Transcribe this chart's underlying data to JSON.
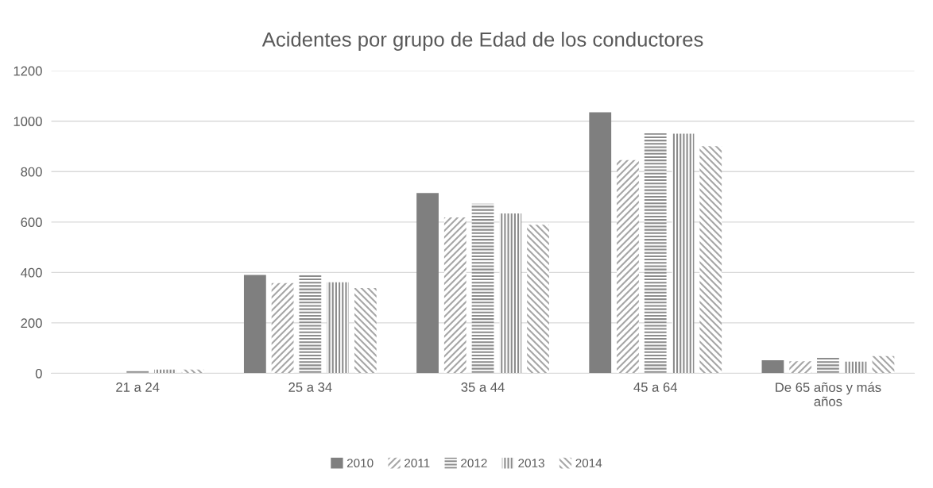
{
  "chart_data": {
    "type": "bar",
    "title": "Acidentes por grupo de Edad de los conductores",
    "categories": [
      "21 a 24",
      "25 a 34",
      "35 a 44",
      "45 a 64",
      "De 65 años y más años"
    ],
    "series": [
      {
        "name": "2010",
        "color": "#7f7f7f",
        "values": [
          0,
          390,
          715,
          1035,
          52
        ]
      },
      {
        "name": "2011",
        "color": "#a6a6a6",
        "values": [
          0,
          358,
          618,
          846,
          48
        ]
      },
      {
        "name": "2012",
        "color": "#8c8c8c",
        "values": [
          10,
          390,
          673,
          952,
          65
        ]
      },
      {
        "name": "2013",
        "color": "#8c8c8c",
        "values": [
          15,
          361,
          634,
          950,
          46
        ]
      },
      {
        "name": "2014",
        "color": "#a6a6a6",
        "values": [
          15,
          338,
          589,
          901,
          68
        ]
      }
    ],
    "ylim": [
      0,
      1200
    ],
    "yticks": [
      0,
      200,
      400,
      600,
      800,
      1000,
      1200
    ],
    "grid": "y",
    "legend": "bottom"
  }
}
